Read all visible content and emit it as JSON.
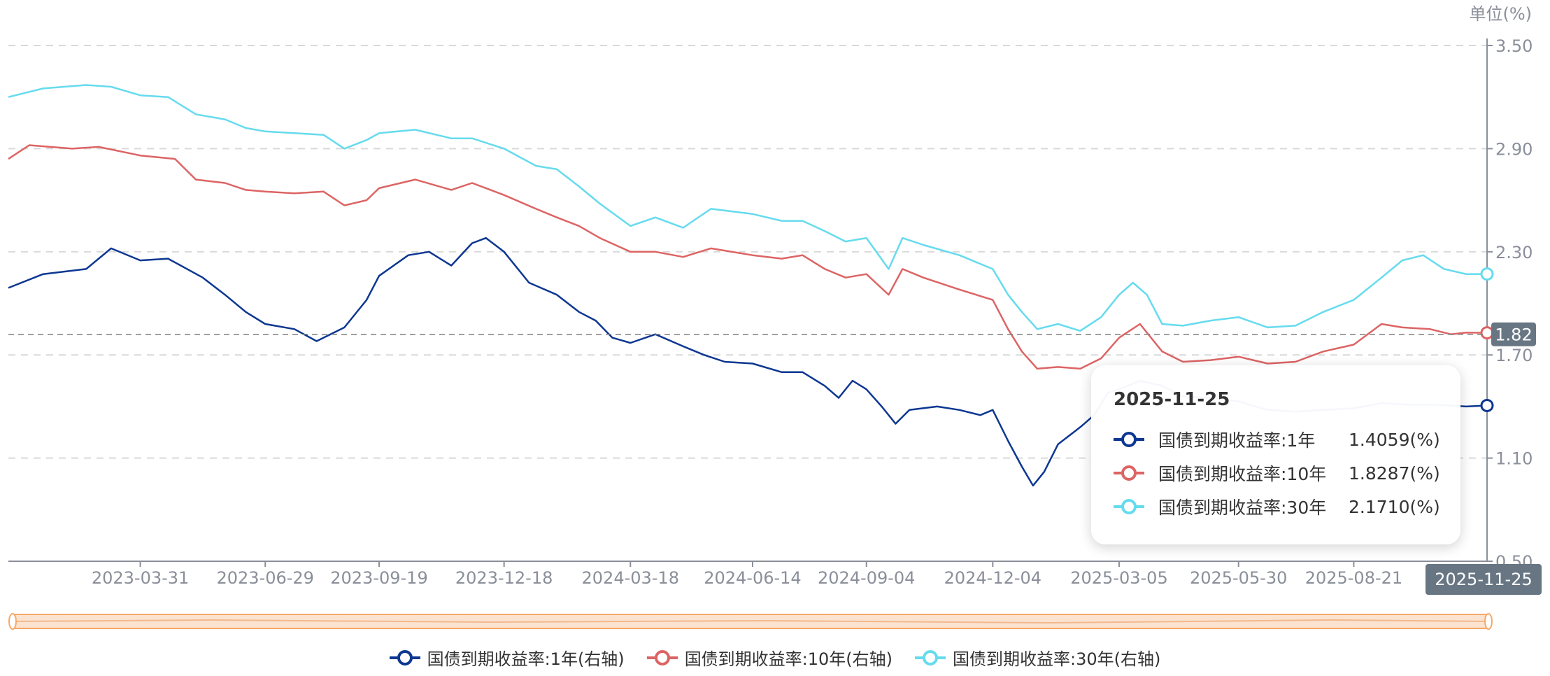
{
  "chart_data": {
    "type": "line",
    "unit_label": "单位(%)",
    "y_ticks": [
      "3.50",
      "2.90",
      "2.30",
      "1.70",
      "1.10",
      "0.50"
    ],
    "ylim": [
      0.5,
      3.5
    ],
    "x_ticks": [
      "2023-03-31",
      "2023-06-29",
      "2023-09-19",
      "2023-12-18",
      "2024-03-18",
      "2024-06-14",
      "2024-09-04",
      "2024-12-04",
      "2025-03-05",
      "2025-05-30",
      "2025-08-21"
    ],
    "x_range": [
      "2022-12-26",
      "2025-11-25"
    ],
    "grid": true,
    "legend_position": "bottom",
    "crosshair": {
      "value": "1.82",
      "x_label": "2025-11-25"
    },
    "series": [
      {
        "name": "国债到期收益率:1年(右轴)",
        "color": "#0d3791",
        "points": [
          [
            "2022-12-26",
            2.09
          ],
          [
            "2023-01-20",
            2.17
          ],
          [
            "2023-02-20",
            2.2
          ],
          [
            "2023-03-10",
            2.32
          ],
          [
            "2023-03-31",
            2.25
          ],
          [
            "2023-04-20",
            2.26
          ],
          [
            "2023-05-15",
            2.15
          ],
          [
            "2023-05-31",
            2.05
          ],
          [
            "2023-06-15",
            1.95
          ],
          [
            "2023-06-29",
            1.88
          ],
          [
            "2023-07-20",
            1.85
          ],
          [
            "2023-08-05",
            1.78
          ],
          [
            "2023-08-25",
            1.86
          ],
          [
            "2023-09-10",
            2.02
          ],
          [
            "2023-09-19",
            2.16
          ],
          [
            "2023-10-10",
            2.28
          ],
          [
            "2023-10-25",
            2.3
          ],
          [
            "2023-11-10",
            2.22
          ],
          [
            "2023-11-25",
            2.35
          ],
          [
            "2023-12-05",
            2.38
          ],
          [
            "2023-12-18",
            2.3
          ],
          [
            "2024-01-05",
            2.12
          ],
          [
            "2024-01-25",
            2.05
          ],
          [
            "2024-02-10",
            1.95
          ],
          [
            "2024-02-22",
            1.9
          ],
          [
            "2024-03-05",
            1.8
          ],
          [
            "2024-03-18",
            1.77
          ],
          [
            "2024-04-05",
            1.82
          ],
          [
            "2024-04-25",
            1.75
          ],
          [
            "2024-05-10",
            1.7
          ],
          [
            "2024-05-25",
            1.66
          ],
          [
            "2024-06-14",
            1.65
          ],
          [
            "2024-07-05",
            1.6
          ],
          [
            "2024-07-20",
            1.6
          ],
          [
            "2024-08-05",
            1.52
          ],
          [
            "2024-08-15",
            1.45
          ],
          [
            "2024-08-25",
            1.55
          ],
          [
            "2024-09-04",
            1.5
          ],
          [
            "2024-09-15",
            1.4
          ],
          [
            "2024-09-25",
            1.3
          ],
          [
            "2024-10-05",
            1.38
          ],
          [
            "2024-10-25",
            1.4
          ],
          [
            "2024-11-10",
            1.38
          ],
          [
            "2024-11-25",
            1.35
          ],
          [
            "2024-12-04",
            1.38
          ],
          [
            "2024-12-15",
            1.2
          ],
          [
            "2024-12-25",
            1.05
          ],
          [
            "2025-01-02",
            0.94
          ],
          [
            "2025-01-10",
            1.02
          ],
          [
            "2025-01-20",
            1.18
          ],
          [
            "2025-02-05",
            1.28
          ],
          [
            "2025-02-15",
            1.35
          ],
          [
            "2025-02-25",
            1.48
          ],
          [
            "2025-03-05",
            1.5
          ],
          [
            "2025-03-20",
            1.55
          ],
          [
            "2025-04-05",
            1.52
          ],
          [
            "2025-04-20",
            1.46
          ],
          [
            "2025-05-10",
            1.45
          ],
          [
            "2025-05-30",
            1.43
          ],
          [
            "2025-06-20",
            1.38
          ],
          [
            "2025-07-10",
            1.37
          ],
          [
            "2025-07-30",
            1.38
          ],
          [
            "2025-08-21",
            1.39
          ],
          [
            "2025-09-10",
            1.42
          ],
          [
            "2025-09-30",
            1.41
          ],
          [
            "2025-10-20",
            1.41
          ],
          [
            "2025-11-10",
            1.4
          ],
          [
            "2025-11-25",
            1.4059
          ]
        ]
      },
      {
        "name": "国债到期收益率:10年(右轴)",
        "color": "#dd6464",
        "points": [
          [
            "2022-12-26",
            2.84
          ],
          [
            "2023-01-10",
            2.92
          ],
          [
            "2023-02-10",
            2.9
          ],
          [
            "2023-03-01",
            2.91
          ],
          [
            "2023-03-31",
            2.86
          ],
          [
            "2023-04-25",
            2.84
          ],
          [
            "2023-05-10",
            2.72
          ],
          [
            "2023-05-31",
            2.7
          ],
          [
            "2023-06-15",
            2.66
          ],
          [
            "2023-06-29",
            2.65
          ],
          [
            "2023-07-20",
            2.64
          ],
          [
            "2023-08-10",
            2.65
          ],
          [
            "2023-08-25",
            2.57
          ],
          [
            "2023-09-10",
            2.6
          ],
          [
            "2023-09-19",
            2.67
          ],
          [
            "2023-10-15",
            2.72
          ],
          [
            "2023-11-10",
            2.66
          ],
          [
            "2023-11-25",
            2.7
          ],
          [
            "2023-12-18",
            2.63
          ],
          [
            "2024-01-10",
            2.55
          ],
          [
            "2024-01-25",
            2.5
          ],
          [
            "2024-02-10",
            2.45
          ],
          [
            "2024-02-25",
            2.38
          ],
          [
            "2024-03-18",
            2.3
          ],
          [
            "2024-04-05",
            2.3
          ],
          [
            "2024-04-25",
            2.27
          ],
          [
            "2024-05-15",
            2.32
          ],
          [
            "2024-06-14",
            2.28
          ],
          [
            "2024-07-05",
            2.26
          ],
          [
            "2024-07-20",
            2.28
          ],
          [
            "2024-08-05",
            2.2
          ],
          [
            "2024-08-20",
            2.15
          ],
          [
            "2024-09-04",
            2.17
          ],
          [
            "2024-09-20",
            2.05
          ],
          [
            "2024-09-30",
            2.2
          ],
          [
            "2024-10-15",
            2.15
          ],
          [
            "2024-11-10",
            2.08
          ],
          [
            "2024-12-04",
            2.02
          ],
          [
            "2024-12-15",
            1.85
          ],
          [
            "2024-12-25",
            1.72
          ],
          [
            "2025-01-05",
            1.62
          ],
          [
            "2025-01-20",
            1.63
          ],
          [
            "2025-02-05",
            1.62
          ],
          [
            "2025-02-20",
            1.68
          ],
          [
            "2025-03-05",
            1.8
          ],
          [
            "2025-03-20",
            1.88
          ],
          [
            "2025-04-05",
            1.72
          ],
          [
            "2025-04-20",
            1.66
          ],
          [
            "2025-05-10",
            1.67
          ],
          [
            "2025-05-30",
            1.69
          ],
          [
            "2025-06-20",
            1.65
          ],
          [
            "2025-07-10",
            1.66
          ],
          [
            "2025-07-30",
            1.72
          ],
          [
            "2025-08-21",
            1.76
          ],
          [
            "2025-09-10",
            1.88
          ],
          [
            "2025-09-25",
            1.86
          ],
          [
            "2025-10-15",
            1.85
          ],
          [
            "2025-10-30",
            1.82
          ],
          [
            "2025-11-10",
            1.83
          ],
          [
            "2025-11-25",
            1.8287
          ]
        ]
      },
      {
        "name": "国债到期收益率:30年(右轴)",
        "color": "#66dbee",
        "points": [
          [
            "2022-12-26",
            3.2
          ],
          [
            "2023-01-20",
            3.25
          ],
          [
            "2023-02-20",
            3.27
          ],
          [
            "2023-03-10",
            3.26
          ],
          [
            "2023-03-31",
            3.21
          ],
          [
            "2023-04-20",
            3.2
          ],
          [
            "2023-05-10",
            3.1
          ],
          [
            "2023-05-31",
            3.07
          ],
          [
            "2023-06-15",
            3.02
          ],
          [
            "2023-06-29",
            3.0
          ],
          [
            "2023-07-20",
            2.99
          ],
          [
            "2023-08-10",
            2.98
          ],
          [
            "2023-08-25",
            2.9
          ],
          [
            "2023-09-10",
            2.95
          ],
          [
            "2023-09-19",
            2.99
          ],
          [
            "2023-10-15",
            3.01
          ],
          [
            "2023-11-10",
            2.96
          ],
          [
            "2023-11-25",
            2.96
          ],
          [
            "2023-12-18",
            2.9
          ],
          [
            "2024-01-10",
            2.8
          ],
          [
            "2024-01-25",
            2.78
          ],
          [
            "2024-02-10",
            2.68
          ],
          [
            "2024-02-25",
            2.58
          ],
          [
            "2024-03-18",
            2.45
          ],
          [
            "2024-04-05",
            2.5
          ],
          [
            "2024-04-25",
            2.44
          ],
          [
            "2024-05-15",
            2.55
          ],
          [
            "2024-06-14",
            2.52
          ],
          [
            "2024-07-05",
            2.48
          ],
          [
            "2024-07-20",
            2.48
          ],
          [
            "2024-08-05",
            2.42
          ],
          [
            "2024-08-20",
            2.36
          ],
          [
            "2024-09-04",
            2.38
          ],
          [
            "2024-09-20",
            2.2
          ],
          [
            "2024-09-30",
            2.38
          ],
          [
            "2024-10-15",
            2.34
          ],
          [
            "2024-11-10",
            2.28
          ],
          [
            "2024-12-04",
            2.2
          ],
          [
            "2024-12-15",
            2.05
          ],
          [
            "2024-12-25",
            1.95
          ],
          [
            "2025-01-05",
            1.85
          ],
          [
            "2025-01-20",
            1.88
          ],
          [
            "2025-02-05",
            1.84
          ],
          [
            "2025-02-20",
            1.92
          ],
          [
            "2025-03-05",
            2.05
          ],
          [
            "2025-03-15",
            2.12
          ],
          [
            "2025-03-25",
            2.05
          ],
          [
            "2025-04-05",
            1.88
          ],
          [
            "2025-04-20",
            1.87
          ],
          [
            "2025-05-10",
            1.9
          ],
          [
            "2025-05-30",
            1.92
          ],
          [
            "2025-06-20",
            1.86
          ],
          [
            "2025-07-10",
            1.87
          ],
          [
            "2025-07-30",
            1.95
          ],
          [
            "2025-08-21",
            2.02
          ],
          [
            "2025-09-10",
            2.15
          ],
          [
            "2025-09-25",
            2.25
          ],
          [
            "2025-10-10",
            2.28
          ],
          [
            "2025-10-25",
            2.2
          ],
          [
            "2025-11-10",
            2.17
          ],
          [
            "2025-11-25",
            2.171
          ]
        ]
      }
    ]
  },
  "tooltip": {
    "date": "2025-11-25",
    "rows": [
      {
        "label": "国债到期收益率:1年",
        "value": "1.4059(%)",
        "color": "#0d3791"
      },
      {
        "label": "国债到期收益率:10年",
        "value": "1.8287(%)",
        "color": "#dd6464"
      },
      {
        "label": "国债到期收益率:30年",
        "value": "2.1710(%)",
        "color": "#66dbee"
      }
    ]
  },
  "slider": {
    "color": "#f5a96a",
    "handle_icon": "slider-handle-icon"
  },
  "legend": {
    "items": [
      {
        "label": "国债到期收益率:1年(右轴)",
        "color": "#0d3791"
      },
      {
        "label": "国债到期收益率:10年(右轴)",
        "color": "#dd6464"
      },
      {
        "label": "国债到期收益率:30年(右轴)",
        "color": "#66dbee"
      }
    ]
  }
}
